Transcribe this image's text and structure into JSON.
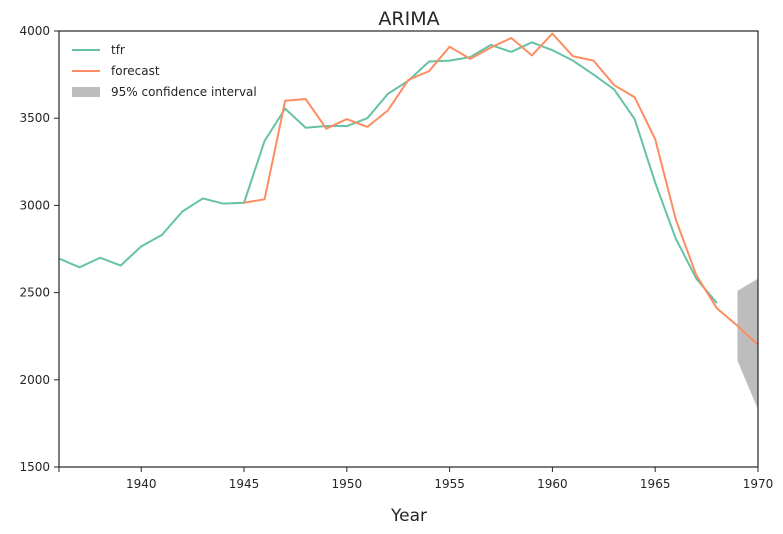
{
  "chart_data": {
    "type": "line",
    "title": "ARIMA",
    "xlabel": "Year",
    "ylabel": "",
    "xlim": [
      1936,
      1970
    ],
    "ylim": [
      1500,
      4000
    ],
    "xticks": [
      1940,
      1945,
      1950,
      1955,
      1960,
      1965,
      1970
    ],
    "yticks": [
      1500,
      2000,
      2500,
      3000,
      3500,
      4000
    ],
    "grid": false,
    "legend_position": "top-left",
    "series": [
      {
        "name": "tfr",
        "color": "#66c2a5",
        "x": [
          1936,
          1937,
          1938,
          1939,
          1940,
          1941,
          1942,
          1943,
          1944,
          1945,
          1946,
          1947,
          1948,
          1949,
          1950,
          1951,
          1952,
          1953,
          1954,
          1955,
          1956,
          1957,
          1958,
          1959,
          1960,
          1961,
          1962,
          1963,
          1964,
          1965,
          1966,
          1967,
          1968
        ],
        "y": [
          2695,
          2645,
          2700,
          2655,
          2765,
          2830,
          2965,
          3040,
          3010,
          3015,
          3370,
          3555,
          3445,
          3455,
          3455,
          3500,
          3640,
          3715,
          3825,
          3830,
          3850,
          3920,
          3880,
          3935,
          3890,
          3830,
          3750,
          3665,
          3495,
          3130,
          2810,
          2580,
          2440
        ]
      },
      {
        "name": "forecast",
        "color": "#fc8d62",
        "x": [
          1945,
          1946,
          1947,
          1948,
          1949,
          1950,
          1951,
          1952,
          1953,
          1954,
          1955,
          1956,
          1957,
          1958,
          1959,
          1960,
          1961,
          1962,
          1963,
          1964,
          1965,
          1966,
          1967,
          1968,
          1969,
          1970
        ],
        "y": [
          3015,
          3035,
          3600,
          3610,
          3440,
          3495,
          3450,
          3545,
          3720,
          3770,
          3910,
          3840,
          3905,
          3960,
          3860,
          3985,
          3855,
          3830,
          3690,
          3620,
          3380,
          2920,
          2600,
          2410,
          2310,
          2200
        ]
      }
    ],
    "confidence_interval": {
      "name": "95% confidence interval",
      "color": "#bdbdbd",
      "x": [
        1969,
        1970
      ],
      "lower": [
        2110,
        1830
      ],
      "upper": [
        2510,
        2580
      ]
    }
  }
}
